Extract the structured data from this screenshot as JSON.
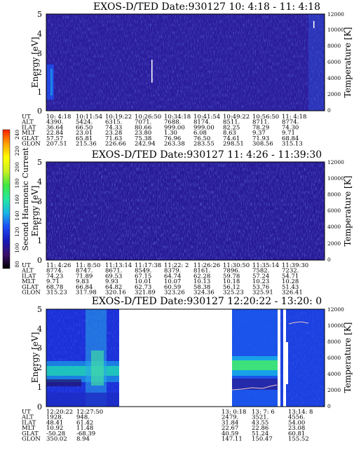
{
  "chart_data": [
    {
      "type": "heatmap",
      "title": "EXOS-D/TED   Date:930127  10: 4:18 - 11: 4:18",
      "ylabel": "Energy [eV]",
      "y2label": "Temperature [K]",
      "ylim": [
        0,
        5
      ],
      "y2lim": [
        0,
        12000
      ],
      "yticks": [
        "0",
        "1",
        "2",
        "3",
        "4",
        "5"
      ],
      "y2ticks": [
        "0",
        "2000",
        "4000",
        "6000",
        "8000",
        "10000",
        "12000"
      ],
      "info_labels": [
        "UT",
        "ALT",
        "ILAT",
        "MLT",
        "GLAT",
        "GLON"
      ],
      "info_columns": [
        [
          "10: 4:18",
          "4390.",
          "36.64",
          "22.84",
          "57.57",
          "207.51"
        ],
        [
          "10:11:54",
          "5424.",
          "66.50",
          "23.01",
          "65.81",
          "215.36"
        ],
        [
          "10:19:22",
          "6315.",
          "74.33",
          "23.28",
          "71.63",
          "226.66"
        ],
        [
          "10:26:50",
          "7071.",
          "80.66",
          "23.80",
          "75.38",
          "242.94"
        ],
        [
          "10:34:18",
          "7688.",
          "999.00",
          "1.30",
          "76.96",
          "263.38"
        ],
        [
          "10:41:54",
          "8174.",
          "999.00",
          "6.08",
          "76.50",
          "283.55"
        ],
        [
          "10:49:22",
          "8511.",
          "82.25",
          "8.63",
          "74.61",
          "298.51"
        ],
        [
          "10:56:50",
          "8711.",
          "78.29",
          "9.37",
          "71.93",
          "308.56"
        ],
        [
          "11: 4:18",
          "8774.",
          "74.30",
          "9.71",
          "68.84",
          "315.13"
        ]
      ]
    },
    {
      "type": "heatmap",
      "title": "EXOS-D/TED   Date:930127  11: 4:26 - 11:39:30",
      "ylabel": "Energy [eV]",
      "y2label": "Temperature [K]",
      "ylim": [
        0,
        5
      ],
      "y2lim": [
        0,
        12000
      ],
      "yticks": [
        "0",
        "1",
        "2",
        "3",
        "4",
        "5"
      ],
      "y2ticks": [
        "0",
        "2000",
        "4000",
        "6000",
        "8000",
        "10000",
        "12000"
      ],
      "info_labels": [
        "UT",
        "ALT",
        "ILAT",
        "MLT",
        "GLAT",
        "GLON"
      ],
      "info_columns": [
        [
          "11: 4:26",
          "8774.",
          "74.23",
          "9.71",
          "68.78",
          "315.23"
        ],
        [
          "11: 8:50",
          "8747.",
          "71.89",
          "9.83",
          "66.84",
          "317.98"
        ],
        [
          "11:13:14",
          "8671.",
          "69.53",
          "9.93",
          "64.82",
          "320.16"
        ],
        [
          "11:17:38",
          "8549.",
          "67.15",
          "10.01",
          "62.73",
          "321.89"
        ],
        [
          "11:22: 2",
          "8379.",
          "64.74",
          "10.07",
          "60.59",
          "323.26"
        ],
        [
          "11:26:26",
          "8161.",
          "62.28",
          "10.13",
          "58.38",
          "324.36"
        ],
        [
          "11:30:50",
          "7896.",
          "59.78",
          "10.18",
          "56.12",
          "325.23"
        ],
        [
          "11:35:14",
          "7582.",
          "57.24",
          "10.23",
          "53.76",
          "325.91"
        ],
        [
          "11:39:30",
          "7232.",
          "54.71",
          "10.28",
          "51.43",
          "326.41"
        ]
      ]
    },
    {
      "type": "heatmap",
      "title": "EXOS-D/TED   Date:930127  12:20:22 - 13:20: 0",
      "ylabel": "Energy [eV]",
      "y2label": "Temperature [K]",
      "ylim": [
        0,
        5
      ],
      "y2lim": [
        0,
        12000
      ],
      "yticks": [
        "0",
        "1",
        "2",
        "3",
        "4",
        "5"
      ],
      "y2ticks": [
        "0",
        "2000",
        "4000",
        "6000",
        "8000",
        "10000",
        "12000"
      ],
      "info_labels": [
        "UT",
        "ALT",
        "ILAT",
        "MLT",
        "GLAT",
        "GLON"
      ],
      "info_columns": [
        [
          "12:20:22",
          "1928.",
          "48.41",
          "10.92",
          "-50.28",
          "350.02"
        ],
        [
          "12:27:50",
          "948.",
          "61.42",
          "11.48",
          "-68.39",
          "8.94"
        ],
        [
          "13: 0:18",
          "2479.",
          "31.84",
          "22.67",
          "40.59",
          "147.11"
        ],
        [
          "13: 7: 6",
          "3521.",
          "43.55",
          "22.86",
          "51.24",
          "150.47"
        ],
        [
          "13:14: 8",
          "4556.",
          "54.00",
          "23.08",
          "60.81",
          "155.52"
        ]
      ]
    }
  ],
  "colorbar": {
    "label": "Second Harmonic Current",
    "ticks": [
      "80",
      "100",
      "120",
      "140",
      "160",
      "180",
      "200",
      "220",
      "240"
    ],
    "stops": [
      "#000000",
      "#3a0f6a",
      "#1818b8",
      "#1d4cf5",
      "#18b4e6",
      "#22e8a0",
      "#40e840",
      "#c8f020",
      "#ffff00",
      "#ffa000",
      "#ff2000"
    ]
  }
}
